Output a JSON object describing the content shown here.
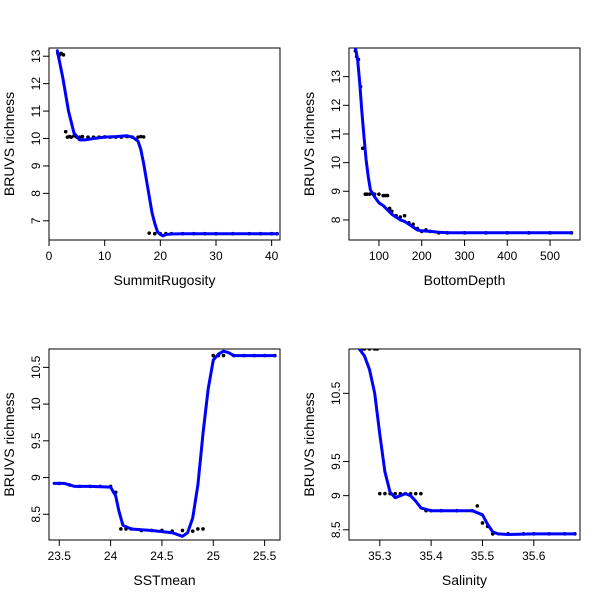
{
  "chart_data": [
    {
      "type": "line",
      "xlabel": "SummitRugosity",
      "ylabel": "BRUVS richness",
      "xlim": [
        0,
        41.5
      ],
      "ylim": [
        6.3,
        13.3
      ],
      "xticks": [
        0,
        10,
        20,
        30,
        40
      ],
      "yticks": [
        7,
        8,
        9,
        10,
        11,
        12,
        13
      ],
      "grid": false,
      "series": [
        {
          "role": "fitted-curve",
          "color": "#0000ff",
          "x": [
            1.5,
            2.5,
            3.5,
            4.5,
            5.5,
            6.5,
            8,
            10,
            12,
            14,
            15,
            16,
            16.5,
            17,
            17.5,
            18,
            18.5,
            19,
            19.5,
            20,
            20.5,
            21,
            22,
            24,
            28,
            35,
            41
          ],
          "y": [
            13.2,
            12.2,
            11.0,
            10.2,
            9.95,
            9.95,
            10.0,
            10.05,
            10.07,
            10.1,
            10.05,
            9.9,
            9.6,
            9.1,
            8.5,
            7.9,
            7.3,
            6.9,
            6.6,
            6.5,
            6.45,
            6.5,
            6.52,
            6.53,
            6.53,
            6.53,
            6.53
          ]
        },
        {
          "role": "partial-residual-points",
          "color": "#000000",
          "x": [
            1.6,
            1.9,
            2.2,
            2.6,
            3.0,
            3.3,
            3.7,
            4.0,
            4.5,
            5.0,
            5.5,
            6.0,
            7.0,
            8.0,
            9.0,
            10.0,
            11.0,
            12.0,
            13.0,
            14.0,
            15.0,
            16.0,
            16.5,
            17.0,
            18.0,
            19.0,
            20.0,
            21.0,
            22.0,
            24.0,
            26.0,
            28.0,
            30.0,
            33.0,
            36.0,
            38.0,
            40.0,
            41.0
          ],
          "y": [
            13.1,
            13.05,
            13.1,
            13.05,
            10.25,
            10.05,
            10.07,
            10.05,
            10.1,
            10.05,
            10.05,
            10.07,
            10.05,
            10.05,
            10.05,
            10.06,
            10.05,
            10.05,
            10.05,
            10.07,
            10.05,
            10.05,
            10.07,
            10.06,
            6.55,
            6.53,
            6.53,
            6.53,
            6.53,
            6.53,
            6.53,
            6.53,
            6.53,
            6.53,
            6.53,
            6.53,
            6.53,
            6.53
          ]
        }
      ]
    },
    {
      "type": "line",
      "xlabel": "BottomDepth",
      "ylabel": "BRUVS richness",
      "xlim": [
        30,
        570
      ],
      "ylim": [
        7.3,
        14.0
      ],
      "xticks": [
        100,
        200,
        300,
        400,
        500
      ],
      "yticks": [
        8,
        9,
        10,
        11,
        12,
        13
      ],
      "grid": false,
      "series": [
        {
          "role": "fitted-curve",
          "color": "#0000ff",
          "x": [
            45,
            50,
            55,
            60,
            65,
            70,
            75,
            80,
            90,
            100,
            110,
            120,
            130,
            140,
            150,
            160,
            170,
            180,
            190,
            200,
            220,
            240,
            260,
            300,
            400,
            500,
            550
          ],
          "y": [
            14.0,
            13.6,
            12.8,
            11.8,
            10.9,
            10.1,
            9.5,
            9.05,
            8.8,
            8.6,
            8.5,
            8.35,
            8.2,
            8.1,
            8.0,
            7.95,
            7.85,
            7.75,
            7.65,
            7.62,
            7.6,
            7.57,
            7.55,
            7.55,
            7.55,
            7.55,
            7.55
          ]
        },
        {
          "role": "partial-residual-points",
          "color": "#000000",
          "x": [
            45,
            48,
            52,
            57,
            62,
            68,
            72,
            78,
            85,
            90,
            100,
            110,
            115,
            120,
            125,
            130,
            140,
            150,
            160,
            170,
            180,
            190,
            200,
            210,
            220,
            240,
            260,
            300,
            350,
            400,
            450,
            500,
            550
          ],
          "y": [
            13.9,
            13.7,
            13.6,
            12.65,
            10.5,
            8.9,
            8.9,
            8.9,
            8.92,
            8.9,
            8.9,
            8.85,
            8.85,
            8.85,
            8.4,
            8.3,
            8.15,
            8.1,
            8.15,
            7.9,
            7.85,
            7.7,
            7.6,
            7.65,
            7.6,
            7.55,
            7.55,
            7.55,
            7.55,
            7.55,
            7.55,
            7.55,
            7.55
          ]
        }
      ]
    },
    {
      "type": "line",
      "xlabel": "SSTmean",
      "ylabel": "BRUVS richness",
      "xlim": [
        23.4,
        25.65
      ],
      "ylim": [
        8.15,
        10.75
      ],
      "xticks": [
        23.5,
        24.0,
        24.5,
        25.0,
        25.5
      ],
      "yticks": [
        8.5,
        9.0,
        9.5,
        10.0,
        10.5
      ],
      "grid": false,
      "series": [
        {
          "role": "fitted-curve",
          "color": "#0000ff",
          "x": [
            23.45,
            23.55,
            23.65,
            23.8,
            24.0,
            24.05,
            24.08,
            24.12,
            24.2,
            24.4,
            24.6,
            24.7,
            24.75,
            24.8,
            24.85,
            24.9,
            24.95,
            25.0,
            25.05,
            25.1,
            25.15,
            25.2,
            25.3,
            25.6
          ],
          "y": [
            8.92,
            8.92,
            8.88,
            8.88,
            8.87,
            8.75,
            8.55,
            8.35,
            8.3,
            8.28,
            8.25,
            8.2,
            8.25,
            8.45,
            8.9,
            9.6,
            10.2,
            10.6,
            10.68,
            10.72,
            10.7,
            10.66,
            10.66,
            10.66
          ]
        },
        {
          "role": "partial-residual-points",
          "color": "#000000",
          "x": [
            23.5,
            23.6,
            23.7,
            23.8,
            23.9,
            24.0,
            24.05,
            24.1,
            24.15,
            24.2,
            24.3,
            24.4,
            24.5,
            24.6,
            24.7,
            24.8,
            24.85,
            24.9,
            25.0,
            25.05,
            25.1,
            25.2,
            25.3,
            25.4,
            25.5,
            25.6
          ],
          "y": [
            8.92,
            8.9,
            8.88,
            8.88,
            8.88,
            8.88,
            8.8,
            8.3,
            8.3,
            8.3,
            8.28,
            8.28,
            8.28,
            8.27,
            8.28,
            8.27,
            8.3,
            8.3,
            10.66,
            10.66,
            10.66,
            10.66,
            10.66,
            10.66,
            10.66,
            10.66
          ]
        }
      ]
    },
    {
      "type": "line",
      "xlabel": "Salinity",
      "ylabel": "BRUVS richness",
      "xlim": [
        35.24,
        35.69
      ],
      "ylim": [
        8.35,
        11.15
      ],
      "xticks": [
        35.3,
        35.4,
        35.5,
        35.6
      ],
      "yticks": [
        8.5,
        9.0,
        9.5,
        10.5
      ],
      "grid": false,
      "series": [
        {
          "role": "fitted-curve",
          "color": "#0000ff",
          "x": [
            35.26,
            35.27,
            35.28,
            35.29,
            35.3,
            35.31,
            35.32,
            35.33,
            35.34,
            35.35,
            35.36,
            35.37,
            35.38,
            35.4,
            35.44,
            35.48,
            35.5,
            35.51,
            35.52,
            35.53,
            35.55,
            35.6,
            35.68
          ],
          "y": [
            11.15,
            11.05,
            10.85,
            10.5,
            9.9,
            9.35,
            9.05,
            8.97,
            9.0,
            9.03,
            9.0,
            8.92,
            8.82,
            8.78,
            8.78,
            8.78,
            8.72,
            8.58,
            8.47,
            8.44,
            8.43,
            8.44,
            8.44
          ]
        },
        {
          "role": "partial-residual-points",
          "color": "#000000",
          "x": [
            35.265,
            35.27,
            35.28,
            35.29,
            35.295,
            35.3,
            35.31,
            35.32,
            35.33,
            35.34,
            35.35,
            35.36,
            35.37,
            35.38,
            35.39,
            35.4,
            35.42,
            35.45,
            35.48,
            35.49,
            35.5,
            35.51,
            35.52,
            35.55,
            35.58,
            35.6,
            35.63,
            35.66,
            35.68
          ],
          "y": [
            11.15,
            11.15,
            11.15,
            11.15,
            11.15,
            9.03,
            9.03,
            9.03,
            9.03,
            9.03,
            9.03,
            9.03,
            9.03,
            9.03,
            8.78,
            8.78,
            8.78,
            8.78,
            8.78,
            8.85,
            8.6,
            8.55,
            8.44,
            8.44,
            8.44,
            8.44,
            8.44,
            8.44,
            8.44
          ]
        }
      ]
    }
  ]
}
